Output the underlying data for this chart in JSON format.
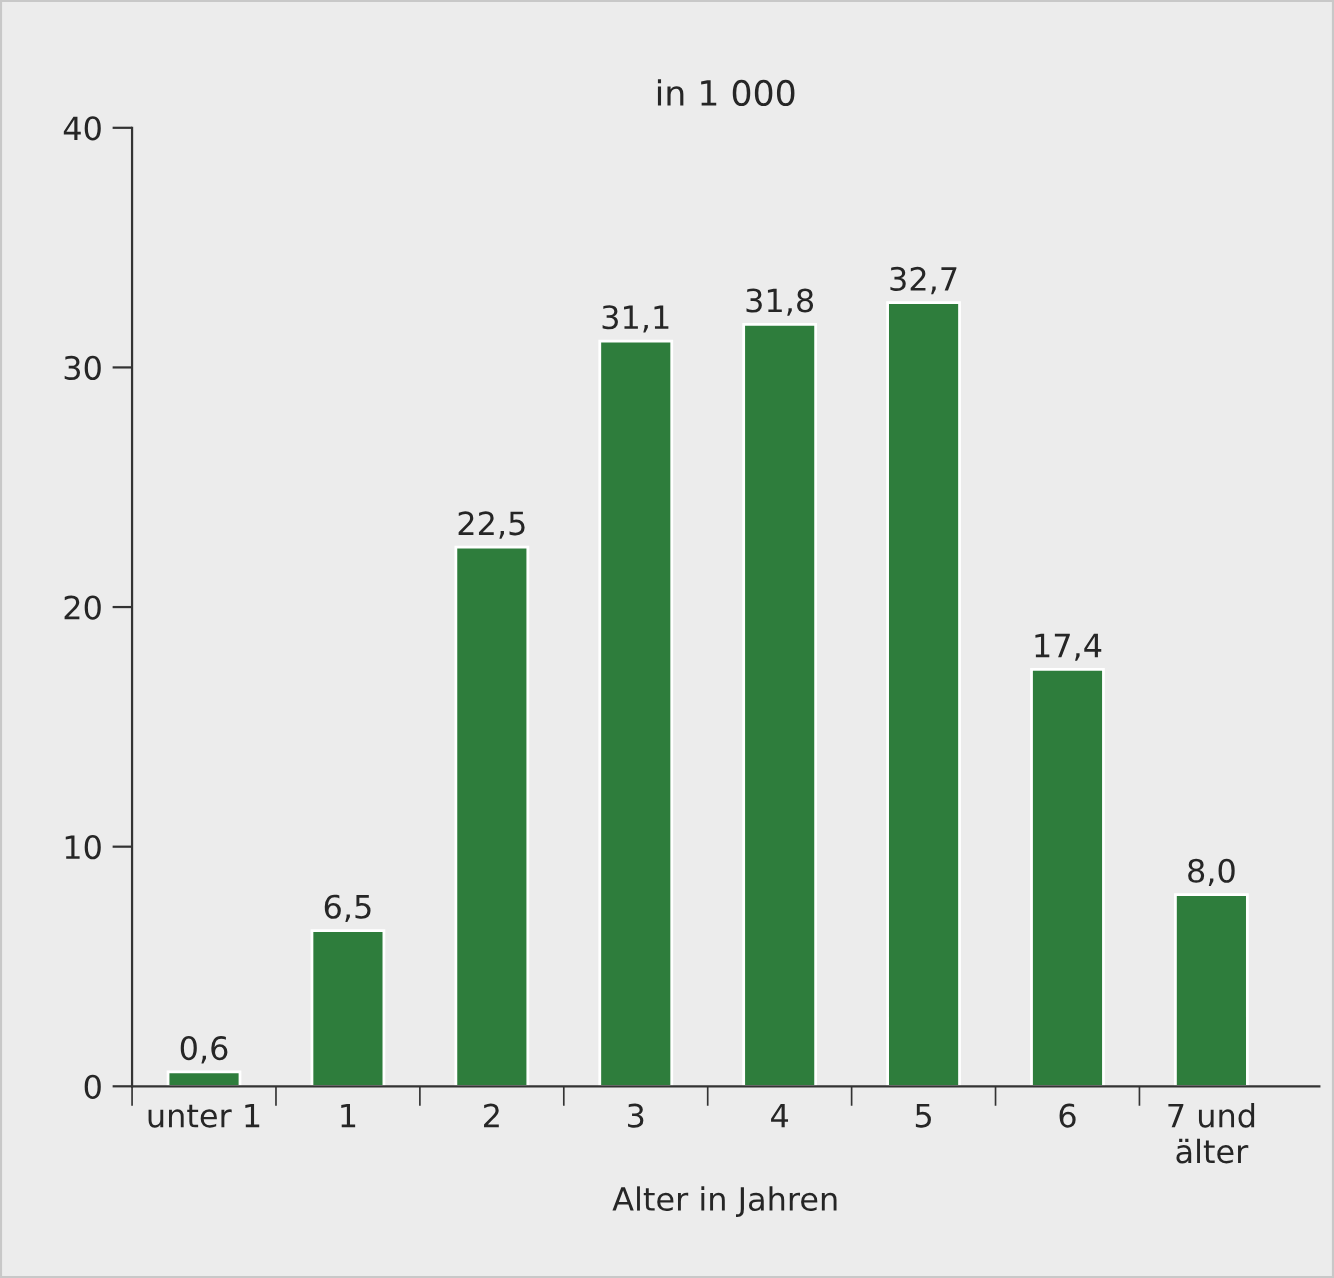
{
  "chart_data": {
    "type": "bar",
    "title": "in 1 000",
    "xlabel": "Alter in Jahren",
    "categories": [
      "unter 1",
      "1",
      "2",
      "3",
      "4",
      "5",
      "6",
      "7 und\nälter"
    ],
    "values": [
      0.6,
      6.5,
      22.5,
      31.1,
      31.8,
      32.7,
      17.4,
      8.0
    ],
    "value_labels": [
      "0,6",
      "6,5",
      "22,5",
      "31,1",
      "31,8",
      "32,7",
      "17,4",
      "8,0"
    ],
    "color": "#2e7d3c",
    "ylim": [
      0,
      40
    ],
    "yticks": [
      0,
      10,
      20,
      30,
      40
    ],
    "grid": false,
    "legend": false
  }
}
